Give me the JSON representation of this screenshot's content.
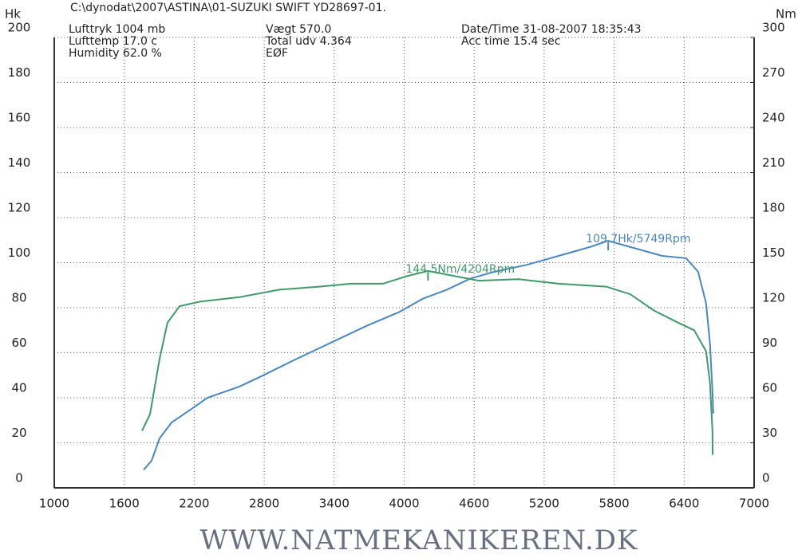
{
  "chart_data": {
    "type": "line",
    "file_path": "C:\\dynodat\\2007\\ASTINA\\01-SUZUKI SWIFT YD28697-01.",
    "info": [
      "Lufttryk 1004 mb",
      "Lufttemp 17.0 c",
      "Humidity 62.0 %",
      "Vægt 570.0",
      "Total udv 4.364",
      "EØF",
      "Date/Time 31-08-2007 18:35:43",
      "Acc time 15.4 sec"
    ],
    "y_label": "Hk",
    "y2_label": "Nm",
    "footer": "WWW.NATMEKANIKEREN.DK",
    "annotations": [
      {
        "text": "109.7Hk/5749Rpm",
        "x": 5749,
        "y": 109.7,
        "axis": "y"
      },
      {
        "text": "144.5Nm/4204Rpm",
        "x": 4204,
        "y": 144.5,
        "axis": "y2"
      }
    ],
    "xlim": [
      1000,
      7000
    ],
    "xticks": [
      1000,
      1600,
      2200,
      2800,
      3400,
      4000,
      4600,
      5200,
      5800,
      6400,
      7000
    ],
    "ylim": [
      0,
      200
    ],
    "yticks": [
      0,
      20,
      40,
      60,
      80,
      100,
      120,
      140,
      160,
      180,
      200
    ],
    "y2lim": [
      0,
      300
    ],
    "y2ticks": [
      0,
      30,
      60,
      90,
      120,
      150,
      180,
      210,
      240,
      270,
      300
    ],
    "grid": true,
    "series": [
      {
        "name": "Hk",
        "color": "#4a86c0",
        "axis": "y",
        "x": [
          1766,
          1834,
          1903,
          2005,
          2176,
          2313,
          2587,
          2792,
          3066,
          3271,
          3476,
          3681,
          3955,
          4160,
          4365,
          4570,
          4776,
          5049,
          5186,
          5323,
          5460,
          5597,
          5749,
          6007,
          6212,
          6417,
          6520,
          6588,
          6622,
          6643,
          6650
        ],
        "values": [
          8,
          12,
          22,
          29,
          35,
          40,
          45,
          50,
          57,
          62,
          67,
          72,
          78,
          84,
          88,
          93,
          96,
          99,
          101,
          103,
          105,
          107,
          109.7,
          106,
          103,
          102,
          96,
          82,
          64,
          43,
          33
        ]
      },
      {
        "name": "Nm",
        "color": "#3f9a6a",
        "axis": "y2",
        "x": [
          1752,
          1821,
          1903,
          1971,
          2074,
          2245,
          2587,
          2929,
          3271,
          3544,
          3818,
          4023,
          4204,
          4639,
          4981,
          5323,
          5733,
          5938,
          6144,
          6349,
          6486,
          6588,
          6622,
          6643,
          6645
        ],
        "values": [
          38,
          49,
          86,
          110,
          121,
          124,
          127,
          132,
          134,
          136,
          136,
          141,
          144.5,
          138,
          139,
          136,
          134,
          129,
          118,
          110,
          105,
          91,
          70,
          38,
          22
        ]
      }
    ]
  }
}
